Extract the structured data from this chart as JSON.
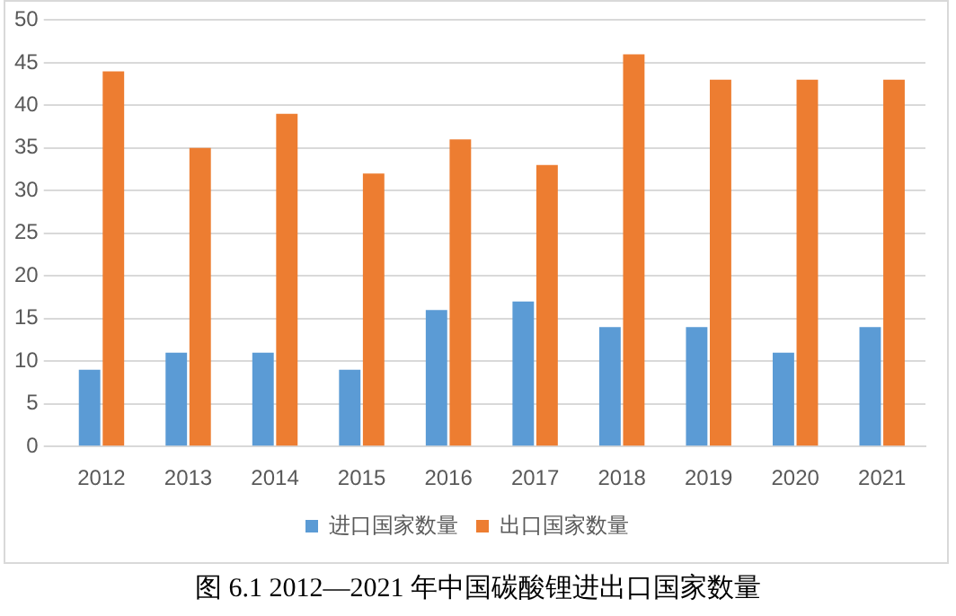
{
  "chart_data": {
    "type": "bar",
    "title": "图 6.1 2012—2021 年中国碳酸锂进出口国家数量",
    "categories": [
      "2012",
      "2013",
      "2014",
      "2015",
      "2016",
      "2017",
      "2018",
      "2019",
      "2020",
      "2021"
    ],
    "series": [
      {
        "name": "进口国家数量",
        "color": "#5b9bd5",
        "values": [
          9,
          11,
          11,
          9,
          16,
          17,
          14,
          14,
          11,
          14
        ]
      },
      {
        "name": "出口国家数量",
        "color": "#ed7d31",
        "values": [
          44,
          35,
          39,
          32,
          36,
          33,
          46,
          43,
          43,
          43
        ]
      }
    ],
    "ylim": [
      0,
      50
    ],
    "yticks": [
      0,
      5,
      10,
      15,
      20,
      25,
      30,
      35,
      40,
      45,
      50
    ],
    "grid": "y",
    "legend": "bottom"
  }
}
